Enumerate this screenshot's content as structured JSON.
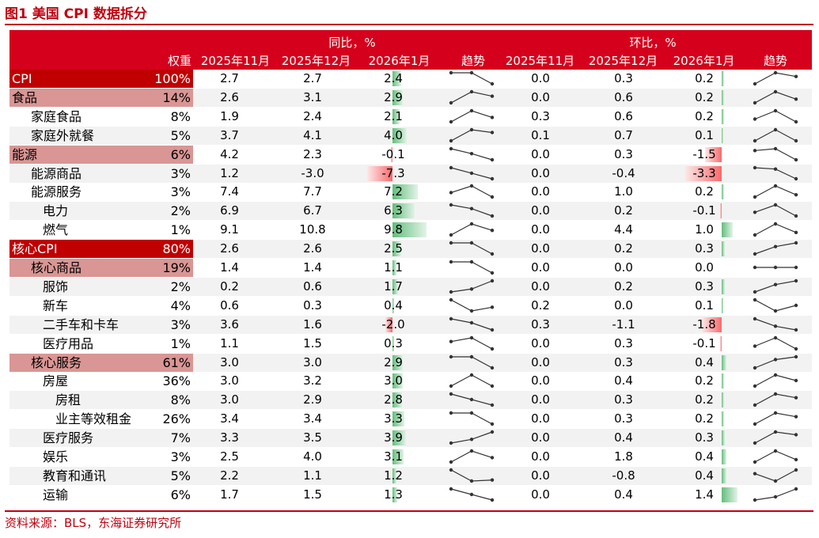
{
  "figure_title": "图1 美国 CPI 数据拆分",
  "source": "资料来源：BLS，东海证券研究所",
  "header": {
    "group_yoy": "同比，%",
    "group_mom": "环比，%",
    "weight": "权重",
    "months": [
      "2025年11月",
      "2025年12月",
      "2026年1月"
    ],
    "trend": "趋势"
  },
  "colors": {
    "header_bg": "#d5001c",
    "level0_bg": "#c00000",
    "level1_bg": "#d99694",
    "positive_bar": "#63be7b",
    "negative_bar": "#f8696b"
  },
  "chart_data": {
    "type": "table",
    "columns": [
      "权重",
      "同比 2025年11月",
      "同比 2025年12月",
      "同比 2026年1月",
      "同比 趋势",
      "环比 2025年11月",
      "环比 2025年12月",
      "环比 2026年1月",
      "环比 趋势"
    ],
    "rows": [
      {
        "name": "CPI",
        "level": 0,
        "weight": "100%",
        "yoy": [
          "2.7",
          "2.7",
          "2.4"
        ],
        "mom": [
          "0.0",
          "0.3",
          "0.2"
        ]
      },
      {
        "name": "食品",
        "level": 1,
        "weight": "14%",
        "yoy": [
          "2.6",
          "3.1",
          "2.9"
        ],
        "mom": [
          "0.0",
          "0.6",
          "0.2"
        ]
      },
      {
        "name": "家庭食品",
        "level": 2,
        "weight": "8%",
        "yoy": [
          "1.9",
          "2.4",
          "2.1"
        ],
        "mom": [
          "0.3",
          "0.6",
          "0.2"
        ]
      },
      {
        "name": "家庭外就餐",
        "level": 2,
        "weight": "5%",
        "yoy": [
          "3.7",
          "4.1",
          "4.0"
        ],
        "mom": [
          "0.1",
          "0.7",
          "0.1"
        ]
      },
      {
        "name": "能源",
        "level": 1,
        "weight": "6%",
        "yoy": [
          "4.2",
          "2.3",
          "-0.1"
        ],
        "mom": [
          "0.0",
          "0.3",
          "-1.5"
        ]
      },
      {
        "name": "能源商品",
        "level": 2,
        "weight": "3%",
        "yoy": [
          "1.2",
          "-3.0",
          "-7.3"
        ],
        "mom": [
          "0.0",
          "-0.4",
          "-3.3"
        ]
      },
      {
        "name": "能源服务",
        "level": 2,
        "weight": "3%",
        "yoy": [
          "7.4",
          "7.7",
          "7.2"
        ],
        "mom": [
          "0.0",
          "1.0",
          "0.2"
        ]
      },
      {
        "name": "电力",
        "level": 3,
        "weight": "2%",
        "yoy": [
          "6.9",
          "6.7",
          "6.3"
        ],
        "mom": [
          "0.0",
          "0.2",
          "-0.1"
        ]
      },
      {
        "name": "燃气",
        "level": 3,
        "weight": "1%",
        "yoy": [
          "9.1",
          "10.8",
          "9.8"
        ],
        "mom": [
          "0.0",
          "4.4",
          "1.0"
        ]
      },
      {
        "name": "核心CPI",
        "level": 0,
        "weight": "80%",
        "yoy": [
          "2.6",
          "2.6",
          "2.5"
        ],
        "mom": [
          "0.0",
          "0.2",
          "0.3"
        ]
      },
      {
        "name": "核心商品",
        "level": 1,
        "weight": "19%",
        "yoy": [
          "1.4",
          "1.4",
          "1.1"
        ],
        "mom": [
          "0.0",
          "0.0",
          "0.0"
        ]
      },
      {
        "name": "服饰",
        "level": 3,
        "weight": "2%",
        "yoy": [
          "0.2",
          "0.6",
          "1.7"
        ],
        "mom": [
          "0.0",
          "0.2",
          "0.3"
        ]
      },
      {
        "name": "新车",
        "level": 3,
        "weight": "4%",
        "yoy": [
          "0.6",
          "0.3",
          "0.4"
        ],
        "mom": [
          "0.2",
          "0.0",
          "0.1"
        ]
      },
      {
        "name": "二手车和卡车",
        "level": 3,
        "weight": "3%",
        "yoy": [
          "3.6",
          "1.6",
          "-2.0"
        ],
        "mom": [
          "0.3",
          "-1.1",
          "-1.8"
        ]
      },
      {
        "name": "医疗用品",
        "level": 3,
        "weight": "1%",
        "yoy": [
          "1.1",
          "1.5",
          "0.3"
        ],
        "mom": [
          "0.0",
          "0.3",
          "-0.1"
        ]
      },
      {
        "name": "核心服务",
        "level": 1,
        "weight": "61%",
        "yoy": [
          "3.0",
          "3.0",
          "2.9"
        ],
        "mom": [
          "0.0",
          "0.3",
          "0.4"
        ]
      },
      {
        "name": "房屋",
        "level": 3,
        "weight": "36%",
        "yoy": [
          "3.0",
          "3.2",
          "3.0"
        ],
        "mom": [
          "0.0",
          "0.4",
          "0.2"
        ]
      },
      {
        "name": "房租",
        "level": 4,
        "weight": "8%",
        "yoy": [
          "3.0",
          "2.9",
          "2.8"
        ],
        "mom": [
          "0.0",
          "0.3",
          "0.2"
        ]
      },
      {
        "name": "业主等效租金",
        "level": 4,
        "weight": "26%",
        "yoy": [
          "3.4",
          "3.4",
          "3.3"
        ],
        "mom": [
          "0.0",
          "0.3",
          "0.2"
        ]
      },
      {
        "name": "医疗服务",
        "level": 3,
        "weight": "7%",
        "yoy": [
          "3.3",
          "3.5",
          "3.9"
        ],
        "mom": [
          "0.0",
          "0.4",
          "0.3"
        ]
      },
      {
        "name": "娱乐",
        "level": 3,
        "weight": "3%",
        "yoy": [
          "2.5",
          "4.0",
          "3.1"
        ],
        "mom": [
          "0.0",
          "1.8",
          "0.4"
        ]
      },
      {
        "name": "教育和通讯",
        "level": 3,
        "weight": "5%",
        "yoy": [
          "2.2",
          "1.1",
          "1.2"
        ],
        "mom": [
          "0.0",
          "-0.8",
          "0.4"
        ]
      },
      {
        "name": "运输",
        "level": 3,
        "weight": "6%",
        "yoy": [
          "1.7",
          "1.5",
          "1.3"
        ],
        "mom": [
          "0.0",
          "0.4",
          "1.4"
        ]
      }
    ]
  }
}
